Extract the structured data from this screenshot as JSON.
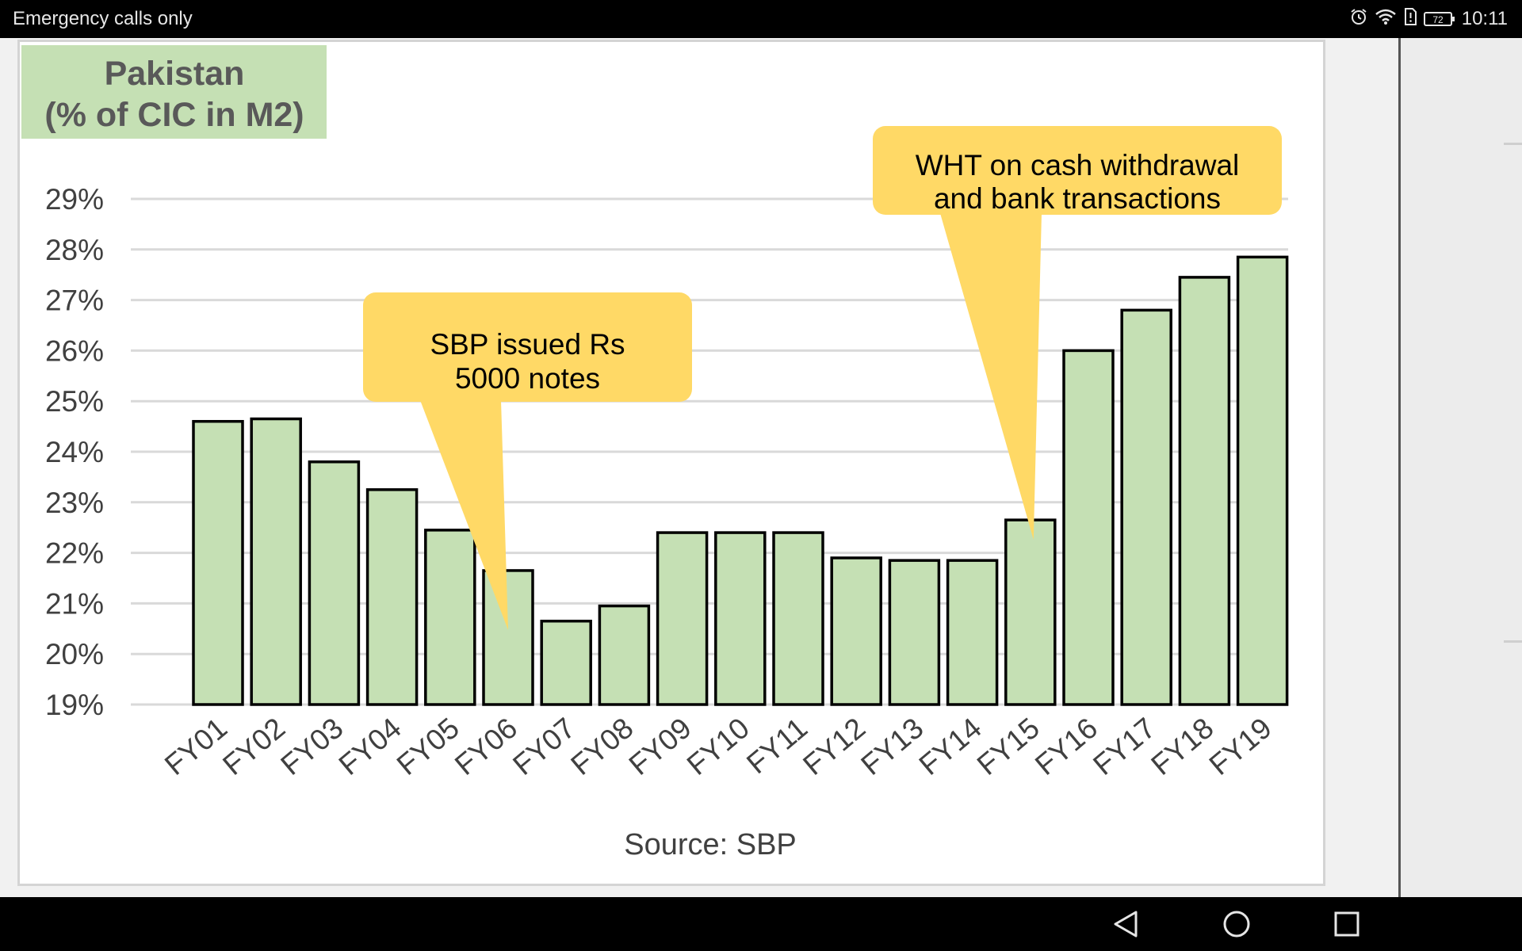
{
  "status_bar": {
    "carrier_text": "Emergency calls only",
    "battery_level": "72",
    "time": "10:11",
    "icons": [
      "alarm-icon",
      "wifi-icon",
      "sim-alert-icon",
      "battery-icon"
    ]
  },
  "nav_bar": {
    "buttons": [
      "back-icon",
      "home-icon",
      "recents-icon"
    ]
  },
  "colors": {
    "bar_fill": "#c5e0b4",
    "bar_stroke": "#000000",
    "callout_fill": "#ffd966",
    "title_bg": "#c5e0b4",
    "title_text": "#595959",
    "grid": "#d9d9d9",
    "axis_text": "#404040"
  },
  "chart_data": {
    "type": "bar",
    "title": "Pakistan\n(% of CIC in M2)",
    "title_lines": [
      "Pakistan",
      "(% of CIC in M2)"
    ],
    "categories": [
      "FY01",
      "FY02",
      "FY03",
      "FY04",
      "FY05",
      "FY06",
      "FY07",
      "FY08",
      "FY09",
      "FY10",
      "FY11",
      "FY12",
      "FY13",
      "FY14",
      "FY15",
      "FY16",
      "FY17",
      "FY18",
      "FY19"
    ],
    "values": [
      24.6,
      24.65,
      23.8,
      23.25,
      22.45,
      21.65,
      20.65,
      20.95,
      22.4,
      22.4,
      22.4,
      21.9,
      21.85,
      21.85,
      22.65,
      26.0,
      26.8,
      27.45,
      27.85
    ],
    "ylim": [
      19,
      29
    ],
    "yticks": [
      19,
      20,
      21,
      22,
      23,
      24,
      25,
      26,
      27,
      28,
      29
    ],
    "ytick_labels": [
      "19%",
      "20%",
      "21%",
      "22%",
      "23%",
      "24%",
      "25%",
      "26%",
      "27%",
      "28%",
      "29%"
    ],
    "xlabel": "",
    "ylabel": "",
    "grid": true,
    "legend": "none",
    "source": "Source: SBP",
    "annotations": [
      {
        "lines": [
          "SBP issued Rs",
          "5000 notes"
        ],
        "points_to": "FY06"
      },
      {
        "lines": [
          "WHT on cash withdrawal",
          "and bank transactions"
        ],
        "points_to": "FY15"
      }
    ]
  }
}
